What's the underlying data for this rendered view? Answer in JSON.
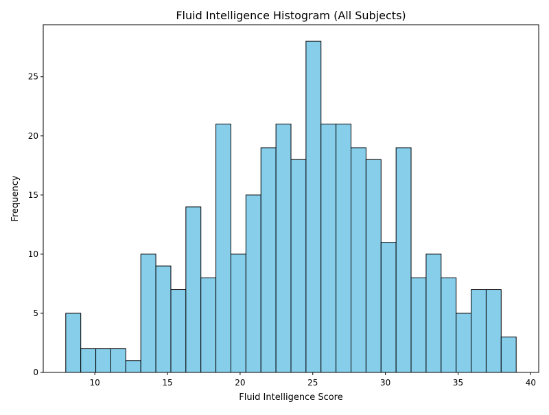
{
  "chart_data": {
    "type": "bar",
    "title": "Fluid Intelligence Histogram (All Subjects)",
    "xlabel": "Fluid Intelligence Score",
    "ylabel": "Frequency",
    "xlim": [
      6.45,
      40.55
    ],
    "ylim": [
      0,
      29.4
    ],
    "x_ticks": [
      10,
      15,
      20,
      25,
      30,
      35,
      40
    ],
    "y_ticks": [
      0,
      5,
      10,
      15,
      20,
      25
    ],
    "bin_start": 8,
    "bin_end": 39,
    "bin_width": 1.0333333333,
    "values": [
      5,
      2,
      2,
      2,
      1,
      10,
      9,
      7,
      14,
      8,
      21,
      10,
      15,
      19,
      21,
      18,
      28,
      21,
      21,
      19,
      18,
      11,
      19,
      8,
      10,
      8,
      5,
      7,
      7,
      3
    ],
    "grid": false,
    "bar_color": "#87CEEB",
    "edge_color": "#000000"
  }
}
